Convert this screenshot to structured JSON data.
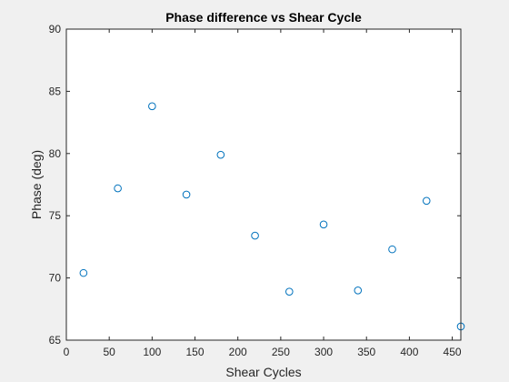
{
  "chart_data": {
    "type": "scatter",
    "title": "Phase difference vs Shear Cycle",
    "xlabel": "Shear Cycles",
    "ylabel": "Phase (deg)",
    "xlim": [
      0,
      460
    ],
    "ylim": [
      65,
      90
    ],
    "xticks": [
      0,
      50,
      100,
      150,
      200,
      250,
      300,
      350,
      400,
      450
    ],
    "yticks": [
      65,
      70,
      75,
      80,
      85,
      90
    ],
    "grid": false,
    "marker": "open-circle",
    "marker_color": "#0072bd",
    "points": [
      {
        "x": 20,
        "y": 70.4
      },
      {
        "x": 60,
        "y": 77.2
      },
      {
        "x": 100,
        "y": 83.8
      },
      {
        "x": 140,
        "y": 76.7
      },
      {
        "x": 180,
        "y": 79.9
      },
      {
        "x": 220,
        "y": 73.4
      },
      {
        "x": 260,
        "y": 68.9
      },
      {
        "x": 300,
        "y": 74.3
      },
      {
        "x": 340,
        "y": 69.0
      },
      {
        "x": 380,
        "y": 72.3
      },
      {
        "x": 420,
        "y": 76.2
      },
      {
        "x": 460,
        "y": 66.1
      }
    ]
  }
}
